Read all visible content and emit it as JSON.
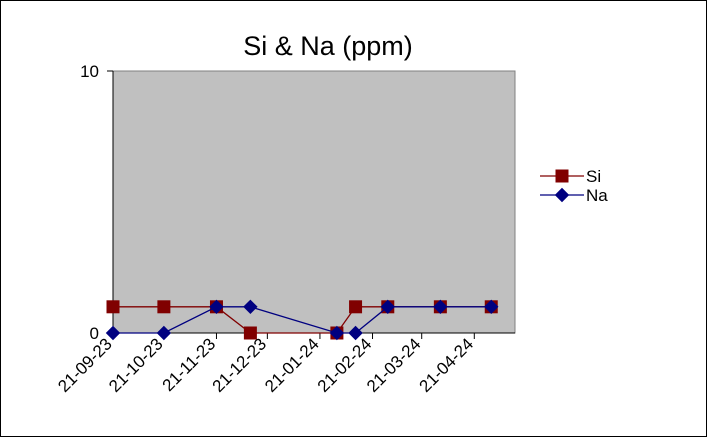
{
  "chart_data": {
    "type": "line",
    "title": "Si & Na (ppm)",
    "xlabel": "",
    "ylabel": "",
    "x_ticks": [
      "21-09-23",
      "21-10-23",
      "21-11-23",
      "21-12-23",
      "21-01-24",
      "21-02-24",
      "21-03-24",
      "21-04-24"
    ],
    "xlim": [
      "2023-09-21",
      "2024-05-15"
    ],
    "ylim": [
      0,
      10
    ],
    "y_ticks": [
      "0",
      "10"
    ],
    "grid": false,
    "plot_background": "#c0c0c0",
    "legend_position": "right",
    "series": [
      {
        "name": "Si",
        "color": "#800000",
        "marker": "square",
        "x": [
          "2023-09-21",
          "2023-10-21",
          "2023-11-21",
          "2023-12-11",
          "2024-01-31",
          "2024-02-11",
          "2024-03-01",
          "2024-04-01",
          "2024-05-01"
        ],
        "values": [
          1,
          1,
          1,
          0,
          0,
          1,
          1,
          1,
          1
        ]
      },
      {
        "name": "Na",
        "color": "#000080",
        "marker": "diamond",
        "x": [
          "2023-09-21",
          "2023-10-21",
          "2023-11-21",
          "2023-12-11",
          "2024-01-31",
          "2024-02-11",
          "2024-03-01",
          "2024-04-01",
          "2024-05-01"
        ],
        "values": [
          0,
          0,
          1,
          1,
          0,
          0,
          1,
          1,
          1
        ]
      }
    ]
  }
}
